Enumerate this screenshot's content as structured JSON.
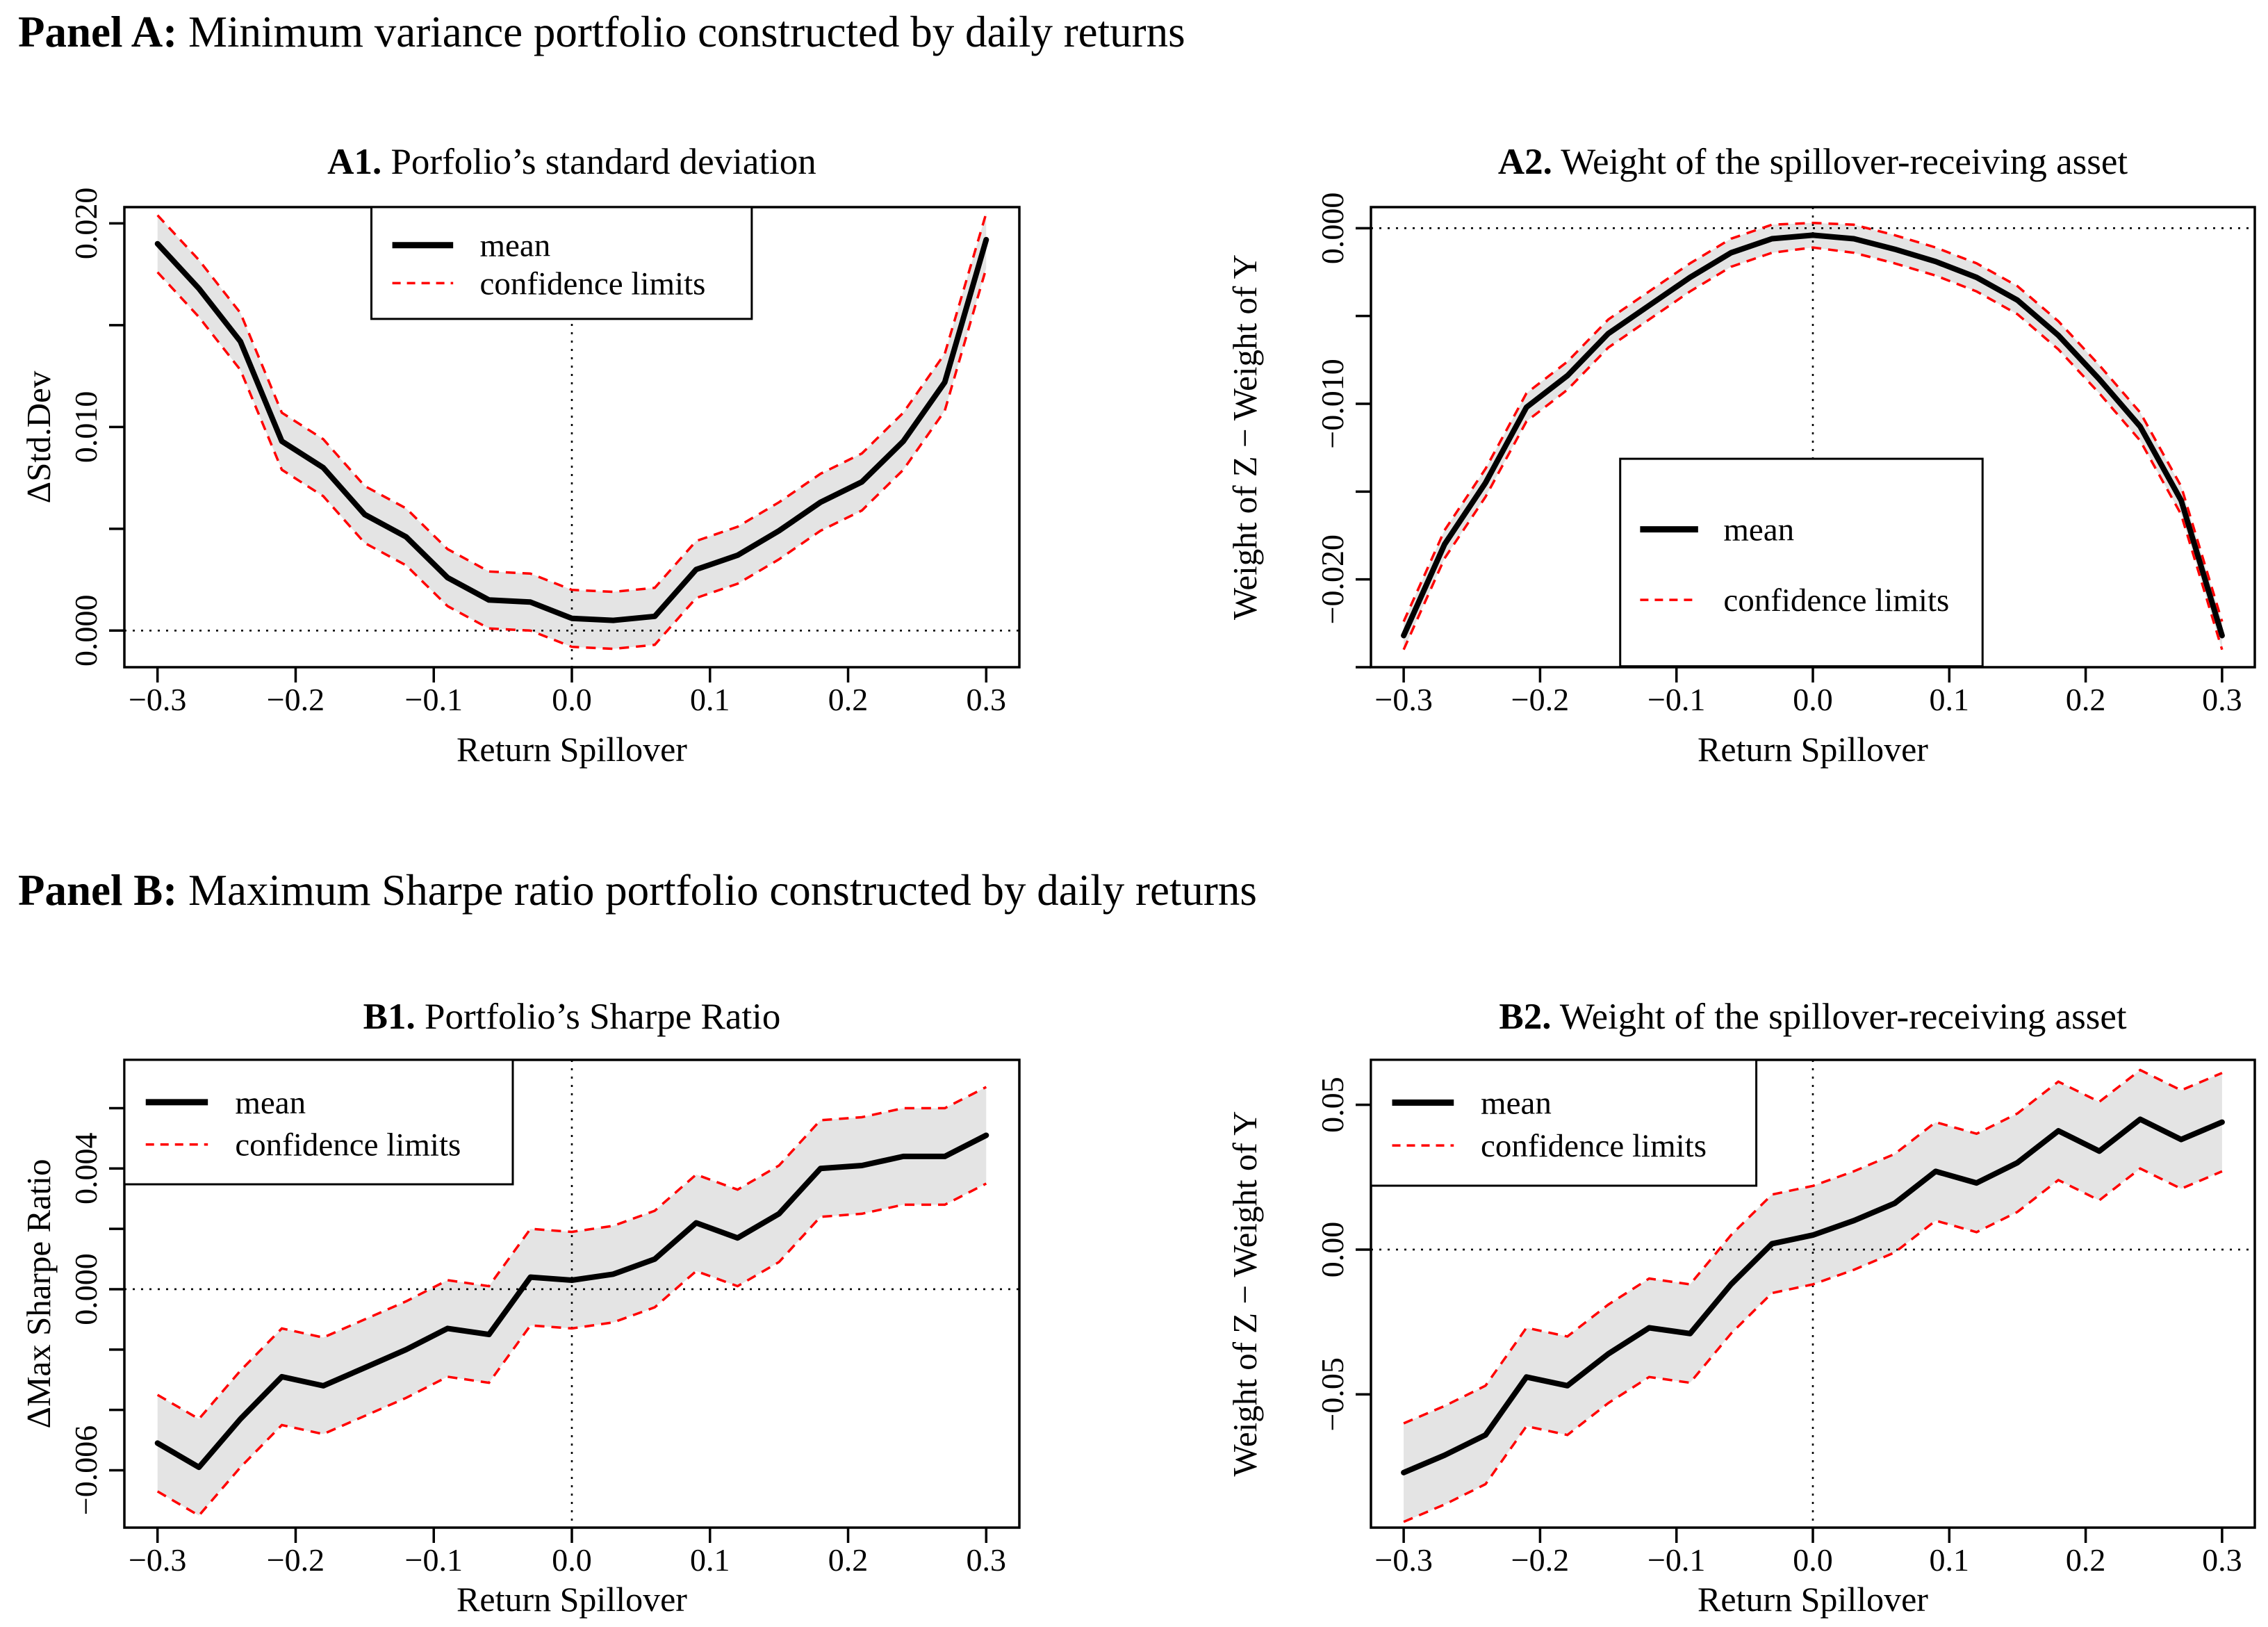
{
  "page": {
    "background": "#ffffff"
  },
  "panels": {
    "a": {
      "bold": "Panel A:",
      "rest": " Minimum variance portfolio constructed by daily returns"
    },
    "b": {
      "bold": "Panel B:",
      "rest": " Maximum Sharpe ratio portfolio constructed by daily returns"
    }
  },
  "legend_labels": {
    "mean": "mean",
    "confidence": "confidence limits"
  },
  "chart_data": [
    {
      "id": "a1",
      "type": "line",
      "title_bold": "A1.",
      "title_rest": " Porfolio’s standard deviation",
      "xlabel": "Return Spillover",
      "ylabel": "ΔStd.Dev",
      "xlim": [
        -0.324,
        0.324
      ],
      "ylim": [
        -0.0018,
        0.0208
      ],
      "grid": false,
      "refline_x": 0,
      "refline_y": 0,
      "xticks": [
        {
          "v": -0.3,
          "label": "−0.3"
        },
        {
          "v": -0.2,
          "label": "−0.2"
        },
        {
          "v": -0.1,
          "label": "−0.1"
        },
        {
          "v": 0.0,
          "label": "0.0"
        },
        {
          "v": 0.1,
          "label": "0.1"
        },
        {
          "v": 0.2,
          "label": "0.2"
        },
        {
          "v": 0.3,
          "label": "0.3"
        }
      ],
      "yticks": [
        {
          "v": 0.0,
          "label": "0.000"
        },
        {
          "v": 0.005
        },
        {
          "v": 0.01,
          "label": "0.010"
        },
        {
          "v": 0.015
        },
        {
          "v": 0.02,
          "label": "0.020"
        }
      ],
      "x": [
        -0.3,
        -0.27,
        -0.24,
        -0.21,
        -0.18,
        -0.15,
        -0.12,
        -0.09,
        -0.06,
        -0.03,
        0,
        0.03,
        0.06,
        0.09,
        0.12,
        0.15,
        0.18,
        0.21,
        0.24,
        0.27,
        0.3
      ],
      "series": [
        {
          "name": "mean",
          "values": [
            0.019,
            0.0168,
            0.0142,
            0.0093,
            0.008,
            0.0057,
            0.0046,
            0.0026,
            0.0015,
            0.0014,
            0.0006,
            0.0005,
            0.0007,
            0.003,
            0.0037,
            0.0049,
            0.0063,
            0.0073,
            0.0093,
            0.0122,
            0.0192
          ]
        },
        {
          "name": "upper confidence limit",
          "values": [
            0.0204,
            0.0182,
            0.0156,
            0.0107,
            0.0094,
            0.0071,
            0.006,
            0.004,
            0.0029,
            0.0028,
            0.002,
            0.0019,
            0.0021,
            0.0044,
            0.0051,
            0.0063,
            0.0077,
            0.0087,
            0.0107,
            0.0136,
            0.0205
          ]
        },
        {
          "name": "lower confidence limit",
          "values": [
            0.0176,
            0.0154,
            0.0128,
            0.0079,
            0.0066,
            0.0043,
            0.0032,
            0.0012,
            0.0001,
            0.0,
            -0.0008,
            -0.0009,
            -0.0007,
            0.0016,
            0.0023,
            0.0035,
            0.0049,
            0.0059,
            0.0079,
            0.0108,
            0.0178
          ]
        }
      ],
      "legend": {
        "position": "top-center",
        "labels": [
          "mean",
          "confidence limits"
        ],
        "box": {
          "x": 0.276,
          "y": 0.0,
          "w": 0.425,
          "h": 0.243
        }
      },
      "colors": {
        "mean": "#000000",
        "confidence": "#ff0000",
        "band": "#e4e4e4"
      }
    },
    {
      "id": "a2",
      "type": "line",
      "title_bold": "A2.",
      "title_rest": " Weight of the spillover-receiving asset",
      "xlabel": "Return Spillover",
      "ylabel": "Weight of Z − Weight of Y",
      "xlim": [
        -0.324,
        0.324
      ],
      "ylim": [
        -0.025,
        0.0012
      ],
      "grid": false,
      "refline_x": 0,
      "refline_y": 0,
      "xticks": [
        {
          "v": -0.3,
          "label": "−0.3"
        },
        {
          "v": -0.2,
          "label": "−0.2"
        },
        {
          "v": -0.1,
          "label": "−0.1"
        },
        {
          "v": 0.0,
          "label": "0.0"
        },
        {
          "v": 0.1,
          "label": "0.1"
        },
        {
          "v": 0.2,
          "label": "0.2"
        },
        {
          "v": 0.3,
          "label": "0.3"
        }
      ],
      "yticks": [
        {
          "v": 0.0,
          "label": "0.000"
        },
        {
          "v": -0.005
        },
        {
          "v": -0.01,
          "label": "−0.010"
        },
        {
          "v": -0.015
        },
        {
          "v": -0.02,
          "label": "−0.020"
        },
        {
          "v": -0.025
        }
      ],
      "x": [
        -0.3,
        -0.27,
        -0.24,
        -0.21,
        -0.18,
        -0.15,
        -0.12,
        -0.09,
        -0.06,
        -0.03,
        0,
        0.03,
        0.06,
        0.09,
        0.12,
        0.15,
        0.18,
        0.21,
        0.24,
        0.27,
        0.3
      ],
      "series": [
        {
          "name": "mean",
          "values": [
            -0.0232,
            -0.018,
            -0.0145,
            -0.0102,
            -0.0084,
            -0.006,
            -0.0044,
            -0.0028,
            -0.0014,
            -0.0006,
            -0.0004,
            -0.0006,
            -0.0012,
            -0.0019,
            -0.0028,
            -0.0041,
            -0.0061,
            -0.0086,
            -0.0113,
            -0.0155,
            -0.0232
          ]
        },
        {
          "name": "upper confidence limit",
          "values": [
            -0.0224,
            -0.0172,
            -0.0137,
            -0.0094,
            -0.0076,
            -0.0052,
            -0.0036,
            -0.002,
            -0.0006,
            0.0002,
            0.0003,
            0.0002,
            -0.0004,
            -0.0011,
            -0.002,
            -0.0033,
            -0.0053,
            -0.0078,
            -0.0105,
            -0.0147,
            -0.0224
          ]
        },
        {
          "name": "lower confidence limit",
          "values": [
            -0.024,
            -0.0188,
            -0.0153,
            -0.011,
            -0.0092,
            -0.0068,
            -0.0052,
            -0.0036,
            -0.0022,
            -0.0014,
            -0.0011,
            -0.0014,
            -0.002,
            -0.0027,
            -0.0036,
            -0.0049,
            -0.0069,
            -0.0094,
            -0.0121,
            -0.0163,
            -0.024
          ]
        }
      ],
      "legend": {
        "position": "bottom-center",
        "labels": [
          "mean",
          "confidence limits"
        ],
        "box": {
          "x": 0.282,
          "y": 0.547,
          "w": 0.41,
          "h": 0.451
        }
      },
      "colors": {
        "mean": "#000000",
        "confidence": "#ff0000",
        "band": "#e4e4e4"
      }
    },
    {
      "id": "b1",
      "type": "line",
      "title_bold": "B1.",
      "title_rest": " Portfolio’s Sharpe Ratio",
      "xlabel": "Return Spillover",
      "ylabel": "ΔMax Sharpe Ratio",
      "xlim": [
        -0.324,
        0.324
      ],
      "ylim": [
        -0.0079,
        0.0076
      ],
      "grid": false,
      "refline_x": 0,
      "refline_y": 0,
      "xticks": [
        {
          "v": -0.3,
          "label": "−0.3"
        },
        {
          "v": -0.2,
          "label": "−0.2"
        },
        {
          "v": -0.1,
          "label": "−0.1"
        },
        {
          "v": 0.0,
          "label": "0.0"
        },
        {
          "v": 0.1,
          "label": "0.1"
        },
        {
          "v": 0.2,
          "label": "0.2"
        },
        {
          "v": 0.3,
          "label": "0.3"
        }
      ],
      "yticks": [
        {
          "v": 0.006
        },
        {
          "v": 0.004,
          "label": "0.004"
        },
        {
          "v": 0.002
        },
        {
          "v": 0.0,
          "label": "0.000"
        },
        {
          "v": -0.002
        },
        {
          "v": -0.004
        },
        {
          "v": -0.006,
          "label": "−0.006"
        }
      ],
      "x": [
        -0.3,
        -0.27,
        -0.24,
        -0.21,
        -0.18,
        -0.15,
        -0.12,
        -0.09,
        -0.06,
        -0.03,
        0,
        0.03,
        0.06,
        0.09,
        0.12,
        0.15,
        0.18,
        0.21,
        0.24,
        0.27,
        0.3
      ],
      "series": [
        {
          "name": "mean",
          "values": [
            -0.0051,
            -0.0059,
            -0.0043,
            -0.0029,
            -0.0032,
            -0.0026,
            -0.002,
            -0.0013,
            -0.0015,
            0.0004,
            0.0003,
            0.0005,
            0.001,
            0.0022,
            0.0017,
            0.0025,
            0.004,
            0.0041,
            0.0044,
            0.0044,
            0.0051
          ]
        },
        {
          "name": "upper confidence limit",
          "values": [
            -0.0035,
            -0.0043,
            -0.0027,
            -0.0013,
            -0.0016,
            -0.001,
            -0.0004,
            0.0003,
            0.0001,
            0.002,
            0.0019,
            0.0021,
            0.0026,
            0.0038,
            0.0033,
            0.0041,
            0.0056,
            0.0057,
            0.006,
            0.006,
            0.0067
          ]
        },
        {
          "name": "lower confidence limit",
          "values": [
            -0.0067,
            -0.0075,
            -0.0059,
            -0.0045,
            -0.0048,
            -0.0042,
            -0.0036,
            -0.0029,
            -0.0031,
            -0.0012,
            -0.0013,
            -0.0011,
            -0.0006,
            0.0006,
            0.0001,
            0.0009,
            0.0024,
            0.0025,
            0.0028,
            0.0028,
            0.0035
          ]
        }
      ],
      "legend": {
        "position": "top-left",
        "labels": [
          "mean",
          "confidence limits"
        ],
        "box": {
          "x": 0.0,
          "y": 0.0,
          "w": 0.434,
          "h": 0.266
        }
      },
      "colors": {
        "mean": "#000000",
        "confidence": "#ff0000",
        "band": "#e4e4e4"
      }
    },
    {
      "id": "b2",
      "type": "line",
      "title_bold": "B2.",
      "title_rest": " Weight of the spillover-receiving asset",
      "xlabel": "Return Spillover",
      "ylabel": "Weight of Z − Weight of Y",
      "xlim": [
        -0.324,
        0.324
      ],
      "ylim": [
        -0.096,
        0.0655
      ],
      "grid": false,
      "refline_x": 0,
      "refline_y": 0,
      "xticks": [
        {
          "v": -0.3,
          "label": "−0.3"
        },
        {
          "v": -0.2,
          "label": "−0.2"
        },
        {
          "v": -0.1,
          "label": "−0.1"
        },
        {
          "v": 0.0,
          "label": "0.0"
        },
        {
          "v": 0.1,
          "label": "0.1"
        },
        {
          "v": 0.2,
          "label": "0.2"
        },
        {
          "v": 0.3,
          "label": "0.3"
        }
      ],
      "yticks": [
        {
          "v": 0.05,
          "label": "0.05"
        },
        {
          "v": 0.0,
          "label": "0.00"
        },
        {
          "v": -0.05,
          "label": "−0.05"
        }
      ],
      "x": [
        -0.3,
        -0.27,
        -0.24,
        -0.21,
        -0.18,
        -0.15,
        -0.12,
        -0.09,
        -0.06,
        -0.03,
        0,
        0.03,
        0.06,
        0.09,
        0.12,
        0.15,
        0.18,
        0.21,
        0.24,
        0.27,
        0.3
      ],
      "series": [
        {
          "name": "mean",
          "values": [
            -0.077,
            -0.071,
            -0.064,
            -0.044,
            -0.047,
            -0.036,
            -0.027,
            -0.029,
            -0.012,
            0.002,
            0.005,
            0.01,
            0.016,
            0.027,
            0.023,
            0.03,
            0.041,
            0.034,
            0.045,
            0.038,
            0.044
          ]
        },
        {
          "name": "upper confidence limit",
          "values": [
            -0.06,
            -0.054,
            -0.047,
            -0.027,
            -0.03,
            -0.019,
            -0.01,
            -0.012,
            0.005,
            0.019,
            0.022,
            0.027,
            0.033,
            0.044,
            0.04,
            0.047,
            0.058,
            0.051,
            0.062,
            0.055,
            0.061
          ]
        },
        {
          "name": "lower confidence limit",
          "values": [
            -0.094,
            -0.088,
            -0.081,
            -0.061,
            -0.064,
            -0.053,
            -0.044,
            -0.046,
            -0.029,
            -0.015,
            -0.012,
            -0.007,
            -0.001,
            0.01,
            0.006,
            0.013,
            0.024,
            0.017,
            0.028,
            0.021,
            0.027
          ]
        }
      ],
      "legend": {
        "position": "top-left",
        "labels": [
          "mean",
          "confidence limits"
        ],
        "box": {
          "x": 0.0,
          "y": 0.0,
          "w": 0.436,
          "h": 0.269
        }
      },
      "colors": {
        "mean": "#000000",
        "confidence": "#ff0000",
        "band": "#e4e4e4"
      }
    }
  ]
}
